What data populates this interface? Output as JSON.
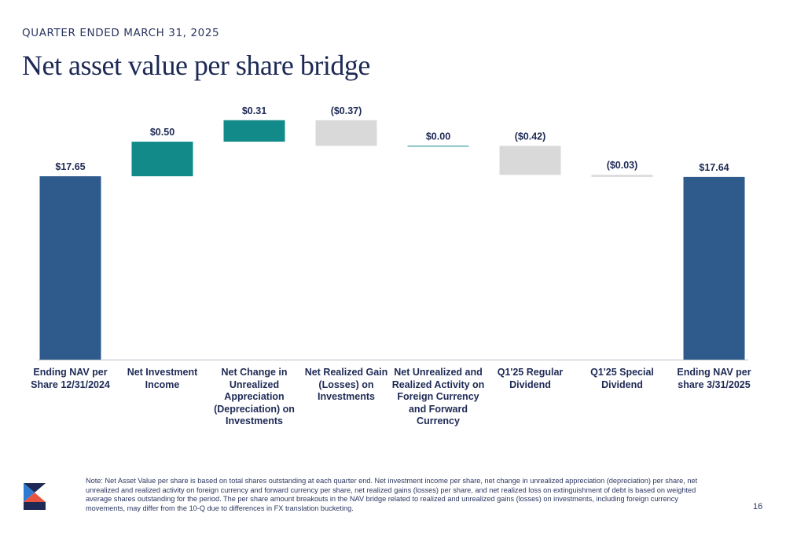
{
  "header": {
    "eyebrow": "QUARTER ENDED MARCH 31, 2025",
    "title": "Net asset value per share bridge"
  },
  "chart_data": {
    "type": "bar",
    "subtype": "waterfall",
    "title": "",
    "xlabel": "",
    "ylabel": "",
    "categories": [
      "Ending NAV per Share 12/31/2024",
      "Net Investment Income",
      "Net Change in Unrealized Appreciation (Depreciation) on Investments",
      "Net Realized Gain (Losses) on Investments",
      "Net Unrealized and Realized Activity on Foreign Currency and Forward Currency",
      "Q1'25 Regular Dividend",
      "Q1'25 Special Dividend",
      "Ending NAV per share 3/31/2025"
    ],
    "values": [
      17.65,
      0.5,
      0.31,
      -0.37,
      0.0,
      -0.42,
      -0.03,
      17.64
    ],
    "kinds": [
      "total",
      "increase",
      "increase",
      "decrease",
      "increase",
      "decrease",
      "decrease",
      "total"
    ],
    "data_labels": [
      "$17.65",
      "$0.50",
      "$0.31",
      "($0.37)",
      "$0.00",
      "($0.42)",
      "($0.03)",
      "$17.64"
    ],
    "colors": {
      "total": "#2e5b8c",
      "increase": "#138a8a",
      "decrease": "#d9d9d9",
      "axis": "#b8c2cc"
    },
    "grid": false,
    "legend": "none"
  },
  "footer": {
    "note": "Note: Net Asset Value per share is based on total shares outstanding at each quarter end. Net investment income per share, net change in unrealized appreciation (depreciation) per share, net unrealized and realized activity on foreign currency and forward currency per share, net realized gains (losses) per share, and net realized loss on extinguishment of debt is based on weighted average shares outstanding for the period. The per share amount breakouts in the NAV bridge related to realized and unrealized gains (losses) on investments, including foreign currency movements, may differ from the 10-Q due to differences in FX translation bucketing.",
    "page_number": "16"
  },
  "logo": {
    "icon": "company-logo-icon",
    "colors": [
      "#1e2a55",
      "#2f7bd1",
      "#e8553f"
    ]
  }
}
